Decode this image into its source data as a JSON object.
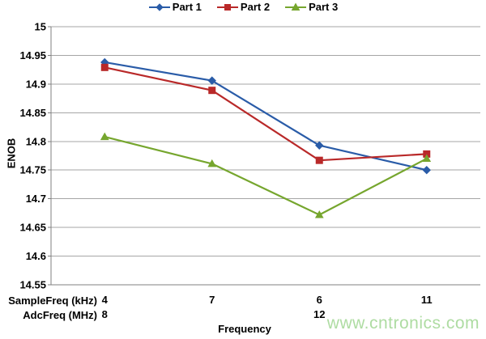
{
  "chart_data": {
    "type": "line",
    "title": "",
    "ylabel": "ENOB",
    "xlabel": "Frequency",
    "ylim": [
      14.55,
      15
    ],
    "ytick_step": 0.05,
    "yticks": [
      15,
      14.95,
      14.9,
      14.85,
      14.8,
      14.75,
      14.7,
      14.65,
      14.6,
      14.55
    ],
    "grid": "horizontal-major",
    "legend_position": "top-center",
    "x_axis_rows": [
      {
        "label": "SampleFreq (kHz)",
        "values": [
          "4",
          "7",
          "6",
          "11"
        ]
      },
      {
        "label": "AdcFreq (MHz)",
        "values": [
          "8",
          "",
          "12",
          ""
        ]
      }
    ],
    "series": [
      {
        "name": "Part 1",
        "marker": "diamond",
        "color": "#2A5CA8",
        "values": [
          14.938,
          14.906,
          14.793,
          14.75
        ]
      },
      {
        "name": "Part 2",
        "marker": "square",
        "color": "#B92929",
        "values": [
          14.929,
          14.889,
          14.767,
          14.778
        ]
      },
      {
        "name": "Part 3",
        "marker": "triangle",
        "color": "#76A62E",
        "values": [
          14.808,
          14.761,
          14.672,
          14.77
        ]
      }
    ],
    "gridline_color": "#A6A6A6",
    "axis_color": "#808080",
    "text_color": "#000000"
  },
  "watermark": {
    "text": "www.cntronics.com",
    "color": "#AEDCA2"
  }
}
